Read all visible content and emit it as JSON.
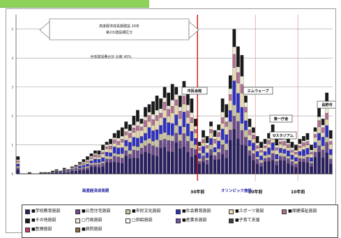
{
  "page": {
    "tab_color": "#8dd35a"
  },
  "chart_data": {
    "type": "bar",
    "stacked": true,
    "ylim": [
      0,
      5.5
    ],
    "yticks": [
      0,
      1,
      2,
      3,
      4,
      5
    ],
    "ytick_unit": "",
    "grid": true,
    "reference_lines": [
      {
        "name": "30年前",
        "x_index": 47
      },
      {
        "name": "20年前",
        "x_index": 62
      },
      {
        "name": "10年前",
        "x_index": 73
      }
    ],
    "annotations": {
      "arrow_note_line1": "高度経済成長期建設 20年",
      "arrow_note_line2": "第2の建設期区分",
      "arrow_note_line3": "全体建設費合計 比較 45%",
      "callouts": [
        "市民会館",
        "エムウェーブ",
        "第一庁舎",
        "Uスタジアム",
        "長野市"
      ],
      "bottom_labels": [
        "高度経済成長期",
        "オリンピック施設"
      ]
    },
    "x_count": 82,
    "series": [
      {
        "name": "学校教育施設",
        "color": "#2a2060"
      },
      {
        "name": "公営住宅施設",
        "color": "#6b4a8a"
      },
      {
        "name": "市民文化施設",
        "color": "#c8c0a0"
      },
      {
        "name": "社会教育施設",
        "color": "#3030c0"
      },
      {
        "name": "スポーツ施設",
        "color": "#e8d8b0"
      },
      {
        "name": "保健福祉施設",
        "color": "#b07090"
      },
      {
        "name": "行政施設",
        "color": "#f0e8d8"
      },
      {
        "name": "その他施設",
        "color": "#1a1a1a"
      }
    ],
    "totals": [
      0.6,
      0,
      0,
      0.05,
      0,
      0,
      0.05,
      0.05,
      0.05,
      0.1,
      0.15,
      0.1,
      0.2,
      0.15,
      0.25,
      0.3,
      0.4,
      0.5,
      0.6,
      0.7,
      0.8,
      0.8,
      1.0,
      1.1,
      1.2,
      1.4,
      1.5,
      1.6,
      1.8,
      1.7,
      2.0,
      2.2,
      1.9,
      2.3,
      2.4,
      2.5,
      2.7,
      2.6,
      3.0,
      2.8,
      3.1,
      3.0,
      2.7,
      3.2,
      2.9,
      2.6,
      1.9,
      1.1,
      1.5,
      1.3,
      1.8,
      1.5,
      1.7,
      2.6,
      2.4,
      3.4,
      5.0,
      4.4,
      4.1,
      2.7,
      1.9,
      1.6,
      1.3,
      1.1,
      1.2,
      1.4,
      1.7,
      1.2,
      1.3,
      1.4,
      1.2,
      1.1,
      1.0,
      1.2,
      1.3,
      1.4,
      1.0,
      1.6,
      2.3,
      1.9,
      2.8,
      1.5
    ]
  },
  "legend": [
    "■学校教育施設",
    "■公営住宅施設",
    "■市民文化施設",
    "■社会教育施設",
    "■スポーツ施設",
    "■保健福祉施設",
    "■その他施設",
    "□行政施設",
    "□供給施設",
    "■産業系施設",
    "■子育て支援",
    "■医療施設",
    "■病院施設"
  ]
}
